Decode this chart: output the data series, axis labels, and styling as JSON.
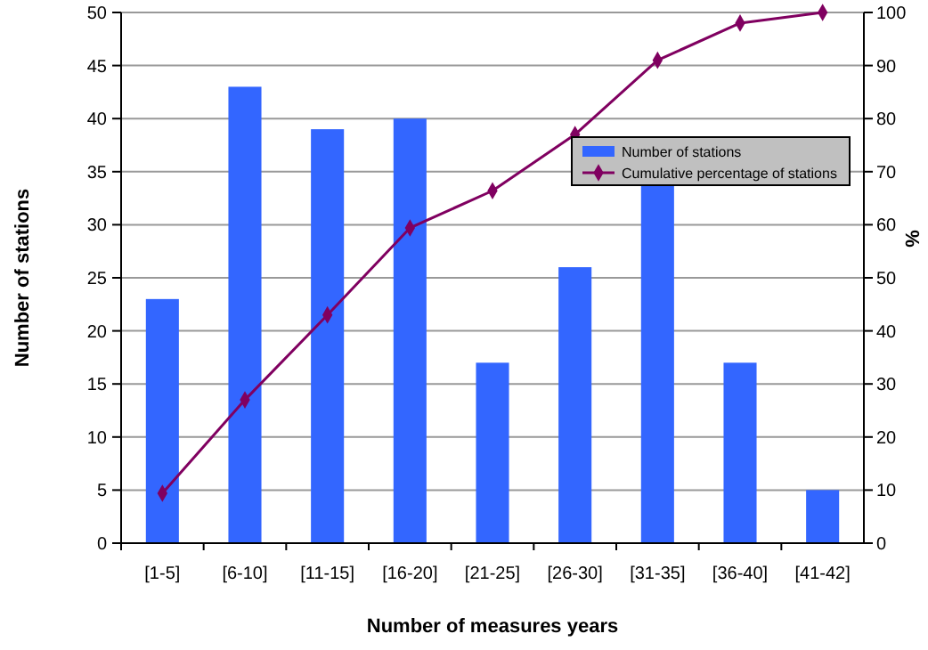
{
  "chart_data": {
    "type": "bar",
    "xlabel": "Number of measures years",
    "ylabel": "Number of stations",
    "y2label": "%",
    "categories": [
      "[1-5]",
      "[6-10]",
      "[11-15]",
      "[16-20]",
      "[21-25]",
      "[26-30]",
      "[31-35]",
      "[36-40]",
      "[41-42]"
    ],
    "series": [
      {
        "name": "Number of stations",
        "color": "#3366ff",
        "values": [
          23,
          43,
          39,
          40,
          17,
          26,
          34,
          17,
          5
        ]
      },
      {
        "name": "Cumulative percentage of stations",
        "type": "line",
        "axis": "y2",
        "color": "#800060",
        "marker": "diamond",
        "values": [
          9.4,
          27.0,
          43.0,
          59.4,
          66.4,
          77.0,
          91.0,
          98.0,
          100
        ]
      }
    ],
    "ylim": [
      0,
      50
    ],
    "yticks": [
      0,
      5,
      10,
      15,
      20,
      25,
      30,
      35,
      40,
      45,
      50
    ],
    "y2lim": [
      0,
      100
    ],
    "y2ticks": [
      0,
      10,
      20,
      30,
      40,
      50,
      60,
      70,
      80,
      90,
      100
    ],
    "grid": "y",
    "legend": "top right"
  }
}
